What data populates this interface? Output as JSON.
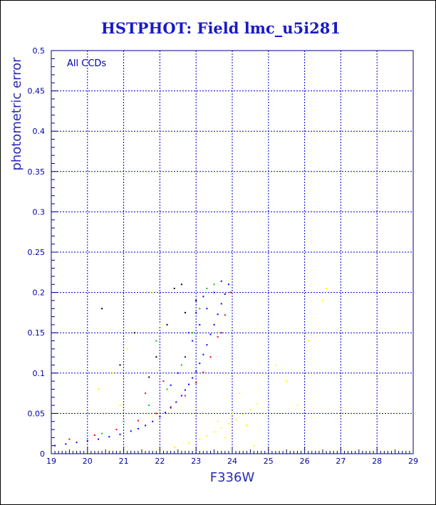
{
  "chart_data": {
    "type": "scatter",
    "title": "HSTPHOT: Field lmc_u5i281",
    "xlabel": "F336W",
    "ylabel": "photometric error",
    "annotation": "All CCDs",
    "xlim": [
      19,
      29
    ],
    "ylim": [
      0,
      0.5
    ],
    "x_ticks": [
      "19",
      "20",
      "21",
      "22",
      "23",
      "24",
      "25",
      "26",
      "27",
      "28",
      "29"
    ],
    "y_ticks": [
      "0",
      "0.05",
      "0.1",
      "0.15",
      "0.2",
      "0.25",
      "0.3",
      "0.35",
      "0.4",
      "0.45",
      "0.5"
    ],
    "grid": true,
    "colors": {
      "axis": "#00008b",
      "grid": "#0000cd",
      "background": "#ffffff"
    },
    "series": [
      {
        "color": "#0000ff",
        "points": [
          [
            19.1,
            0.01
          ],
          [
            19.4,
            0.012
          ],
          [
            19.7,
            0.014
          ],
          [
            20.0,
            0.016
          ],
          [
            20.3,
            0.018
          ],
          [
            20.6,
            0.021
          ],
          [
            20.9,
            0.024
          ],
          [
            21.2,
            0.028
          ],
          [
            21.4,
            0.031
          ],
          [
            21.6,
            0.035
          ],
          [
            21.8,
            0.04
          ],
          [
            22.0,
            0.046
          ],
          [
            22.15,
            0.051
          ],
          [
            22.3,
            0.057
          ],
          [
            22.45,
            0.064
          ],
          [
            22.6,
            0.072
          ],
          [
            22.7,
            0.079
          ],
          [
            22.8,
            0.086
          ],
          [
            22.9,
            0.094
          ],
          [
            23.0,
            0.102
          ],
          [
            23.1,
            0.112
          ],
          [
            23.2,
            0.123
          ],
          [
            23.3,
            0.135
          ],
          [
            23.4,
            0.148
          ],
          [
            23.5,
            0.16
          ],
          [
            23.6,
            0.173
          ],
          [
            23.7,
            0.186
          ],
          [
            23.8,
            0.198
          ],
          [
            23.9,
            0.21
          ],
          [
            23.3,
            0.18
          ],
          [
            23.1,
            0.16
          ],
          [
            22.9,
            0.14
          ],
          [
            22.7,
            0.12
          ],
          [
            22.5,
            0.1
          ],
          [
            22.3,
            0.085
          ],
          [
            23.5,
            0.2
          ],
          [
            23.7,
            0.214
          ],
          [
            22.8,
            0.15
          ],
          [
            23.0,
            0.175
          ],
          [
            23.2,
            0.195
          ]
        ]
      },
      {
        "color": "#ff0000",
        "points": [
          [
            19.5,
            0.018
          ],
          [
            20.2,
            0.023
          ],
          [
            20.8,
            0.03
          ],
          [
            21.4,
            0.041
          ],
          [
            21.9,
            0.05
          ],
          [
            22.3,
            0.058
          ],
          [
            22.7,
            0.072
          ],
          [
            23.0,
            0.088
          ],
          [
            23.2,
            0.101
          ],
          [
            23.4,
            0.12
          ],
          [
            23.6,
            0.145
          ],
          [
            23.8,
            0.172
          ],
          [
            23.95,
            0.2
          ],
          [
            23.7,
            0.15
          ],
          [
            22.1,
            0.09
          ],
          [
            21.6,
            0.075
          ]
        ]
      },
      {
        "color": "#00c800",
        "points": [
          [
            20.4,
            0.025
          ],
          [
            21.0,
            0.04
          ],
          [
            21.7,
            0.06
          ],
          [
            22.2,
            0.08
          ],
          [
            22.6,
            0.11
          ],
          [
            22.9,
            0.15
          ],
          [
            23.1,
            0.18
          ],
          [
            23.5,
            0.21
          ],
          [
            21.9,
            0.14
          ],
          [
            23.3,
            0.205
          ]
        ]
      },
      {
        "color": "#000000",
        "points": [
          [
            20.4,
            0.18
          ],
          [
            21.3,
            0.15
          ],
          [
            21.9,
            0.12
          ],
          [
            22.4,
            0.205
          ],
          [
            22.7,
            0.175
          ],
          [
            22.6,
            0.21
          ],
          [
            23.0,
            0.19
          ],
          [
            21.7,
            0.095
          ],
          [
            22.2,
            0.16
          ],
          [
            20.9,
            0.11
          ]
        ]
      },
      {
        "color": "#ffff00",
        "points": [
          [
            20.0,
            0.002
          ],
          [
            20.6,
            0.003
          ],
          [
            21.0,
            0.003
          ],
          [
            21.5,
            0.004
          ],
          [
            22.0,
            0.005
          ],
          [
            22.4,
            0.008
          ],
          [
            22.8,
            0.013
          ],
          [
            23.1,
            0.018
          ],
          [
            23.3,
            0.022
          ],
          [
            23.5,
            0.027
          ],
          [
            23.7,
            0.032
          ],
          [
            23.9,
            0.037
          ],
          [
            24.1,
            0.042
          ],
          [
            24.3,
            0.048
          ],
          [
            24.5,
            0.055
          ],
          [
            24.7,
            0.062
          ],
          [
            23.6,
            0.04
          ],
          [
            24.0,
            0.05
          ],
          [
            24.4,
            0.035
          ],
          [
            23.8,
            0.02
          ],
          [
            24.6,
            0.01
          ],
          [
            25.0,
            0.005
          ],
          [
            26.0,
            0.004
          ],
          [
            25.5,
            0.09
          ],
          [
            26.1,
            0.14
          ],
          [
            26.5,
            0.19
          ],
          [
            26.6,
            0.205
          ],
          [
            25.8,
            0.06
          ],
          [
            20.3,
            0.08
          ],
          [
            20.7,
            0.1
          ],
          [
            21.1,
            0.13
          ],
          [
            21.8,
            0.2
          ],
          [
            22.0,
            0.16
          ],
          [
            20.9,
            0.06
          ],
          [
            24.2,
            0.075
          ],
          [
            25.2,
            0.11
          ]
        ]
      }
    ]
  }
}
